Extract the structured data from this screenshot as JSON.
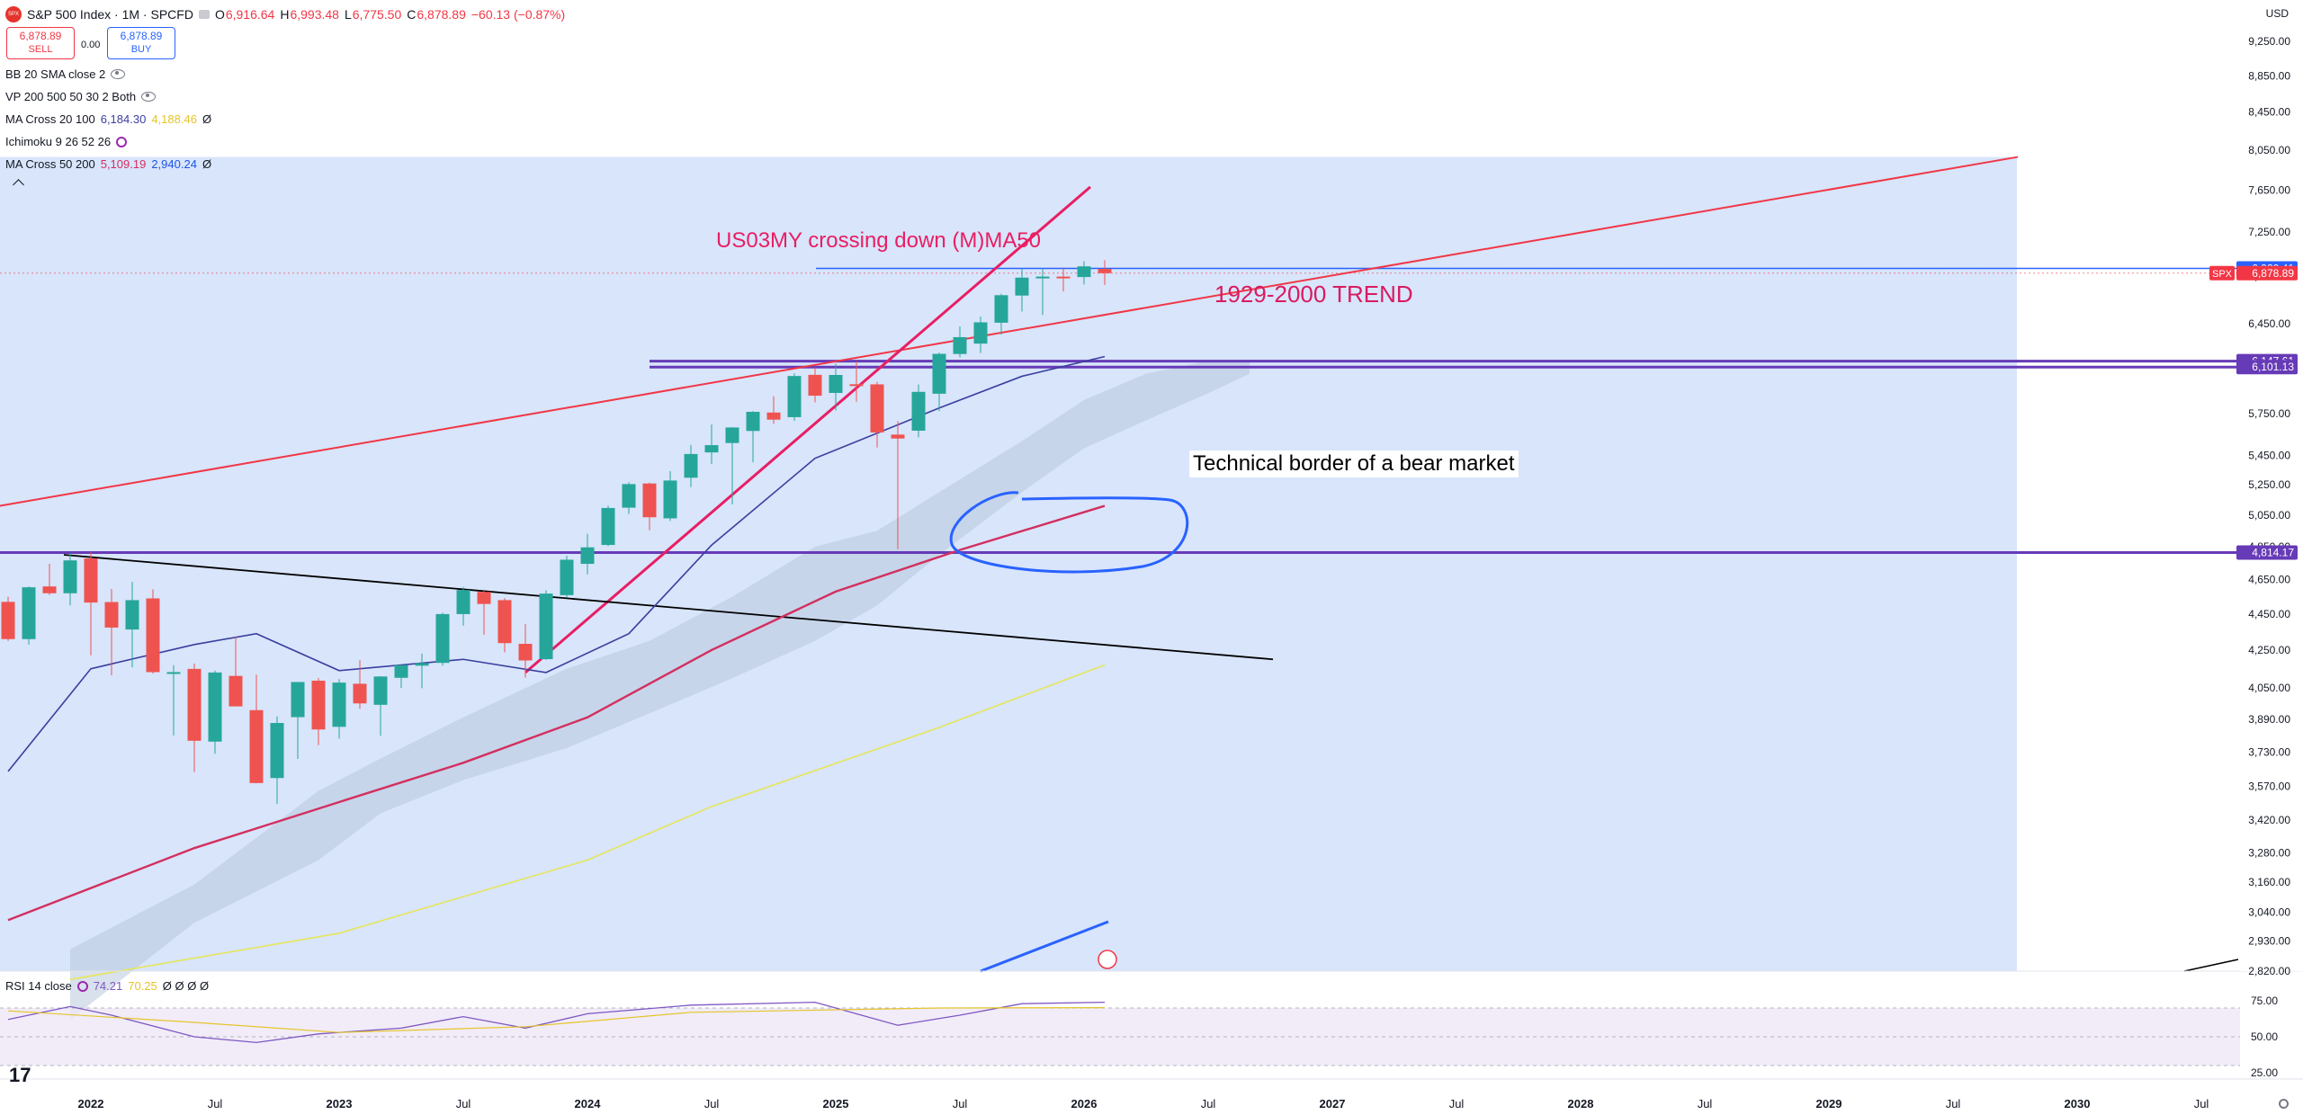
{
  "header": {
    "symbol_icon": "SPX",
    "title": "S&P 500 Index · 1M · SPCFD",
    "open_label": "O",
    "open": "6,916.64",
    "high_label": "H",
    "high": "6,993.48",
    "low_label": "L",
    "low": "6,775.50",
    "close_label": "C",
    "close": "6,878.89",
    "change": "−60.13 (−0.87%)",
    "currency": "USD"
  },
  "trade": {
    "sell_price": "6,878.89",
    "sell_label": "SELL",
    "spread": "0.00",
    "buy_price": "6,878.89",
    "buy_label": "BUY"
  },
  "indicators": [
    {
      "name": "BB 20 SMA close 2",
      "values": []
    },
    {
      "name": "VP 200 500 50 30 2 Both",
      "values": []
    },
    {
      "name": "MA Cross 20 100",
      "values": [
        "6,184.30",
        "4,188.46",
        "Ø"
      ]
    },
    {
      "name": "Ichimoku 9 26 52 26",
      "values": []
    },
    {
      "name": "MA Cross 50 200",
      "values": [
        "5,109.19",
        "2,940.24",
        "Ø"
      ]
    }
  ],
  "rsi": {
    "name": "RSI 14 close",
    "value1": "74.21",
    "value2": "70.25",
    "nulls": "Ø Ø Ø Ø"
  },
  "annotations": {
    "us03my": "US03MY crossing down (M)MA50",
    "trend": "1929-2000 TREND",
    "bear": "Technical border of a bear market"
  },
  "price_tags": [
    {
      "label": "6,920.41",
      "value": 6920.41,
      "color": "#2962ff"
    },
    {
      "label": "6,878.89",
      "value": 6878.89,
      "color": "#f23645",
      "prefix": "SPX"
    },
    {
      "label": "6,147.61",
      "value": 6147.61,
      "color": "#673ab7"
    },
    {
      "label": "6,101.13",
      "value": 6101.13,
      "color": "#673ab7"
    },
    {
      "label": "4,814.17",
      "value": 4814.17,
      "color": "#673ab7"
    }
  ],
  "colors": {
    "bull": "#26a69a",
    "bear": "#ef5350",
    "hline": "#673ab7",
    "trend": "#f23645",
    "ma20": "#3a3f9e",
    "ma100": "#d32f5f",
    "ma200": "#e6e65a"
  },
  "chart_data": {
    "type": "candlestick",
    "title": "S&P 500 Index · 1M · SPCFD",
    "y_axis": {
      "ticks": [
        2820,
        2930,
        3040,
        3160,
        3280,
        3420,
        3570,
        3730,
        3890,
        4050,
        4250,
        4450,
        4650,
        4850,
        5050,
        5250,
        5450,
        5750,
        6100,
        6450,
        6850,
        7250,
        7650,
        8050,
        8450,
        8850,
        9250
      ],
      "tick_labels": [
        "2,820.00",
        "2,930.00",
        "3,040.00",
        "3,160.00",
        "3,280.00",
        "3,420.00",
        "3,570.00",
        "3,730.00",
        "3,890.00",
        "4,050.00",
        "4,250.00",
        "4,450.00",
        "4,650.00",
        "4,850.00",
        "5,050.00",
        "5,250.00",
        "5,450.00",
        "5,750.00",
        "6,100.00",
        "6,450.00",
        "6,850.00",
        "7,250.00",
        "7,650.00",
        "8,050.00",
        "8,450.00",
        "8,850.00",
        "9,250.00"
      ],
      "scale": "log"
    },
    "x_axis": {
      "tick_labels": [
        "2022",
        "Jul",
        "2023",
        "Jul",
        "2024",
        "Jul",
        "2025",
        "Jul",
        "2026",
        "Jul",
        "2027",
        "Jul",
        "2028",
        "Jul",
        "2029",
        "Jul",
        "2030",
        "Jul"
      ],
      "tick_dates": [
        "2022-01",
        "2022-07",
        "2023-01",
        "2023-07",
        "2024-01",
        "2024-07",
        "2025-01",
        "2025-07",
        "2026-01",
        "2026-07",
        "2027-01",
        "2027-07",
        "2028-01",
        "2028-07",
        "2029-01",
        "2029-07",
        "2030-01",
        "2030-07"
      ]
    },
    "candles": [
      {
        "date": "2021-09",
        "o": 4520,
        "h": 4550,
        "l": 4300,
        "c": 4310
      },
      {
        "date": "2021-10",
        "o": 4310,
        "h": 4610,
        "l": 4280,
        "c": 4605
      },
      {
        "date": "2021-11",
        "o": 4610,
        "h": 4745,
        "l": 4560,
        "c": 4570
      },
      {
        "date": "2021-12",
        "o": 4570,
        "h": 4810,
        "l": 4500,
        "c": 4766
      },
      {
        "date": "2022-01",
        "o": 4778,
        "h": 4818,
        "l": 4222,
        "c": 4516
      },
      {
        "date": "2022-02",
        "o": 4519,
        "h": 4595,
        "l": 4115,
        "c": 4374
      },
      {
        "date": "2022-03",
        "o": 4363,
        "h": 4637,
        "l": 4157,
        "c": 4530
      },
      {
        "date": "2022-04",
        "o": 4540,
        "h": 4593,
        "l": 4124,
        "c": 4132
      },
      {
        "date": "2022-05",
        "o": 4130,
        "h": 4169,
        "l": 3811,
        "c": 4132
      },
      {
        "date": "2022-06",
        "o": 4149,
        "h": 4177,
        "l": 3637,
        "c": 3785
      },
      {
        "date": "2022-07",
        "o": 3781,
        "h": 4140,
        "l": 3723,
        "c": 4130
      },
      {
        "date": "2022-08",
        "o": 4112,
        "h": 4325,
        "l": 3955,
        "c": 3955
      },
      {
        "date": "2022-09",
        "o": 3936,
        "h": 4119,
        "l": 3585,
        "c": 3586
      },
      {
        "date": "2022-10",
        "o": 3609,
        "h": 3905,
        "l": 3492,
        "c": 3872
      },
      {
        "date": "2022-11",
        "o": 3901,
        "h": 4080,
        "l": 3698,
        "c": 4080
      },
      {
        "date": "2022-12",
        "o": 4087,
        "h": 4101,
        "l": 3764,
        "c": 3840
      },
      {
        "date": "2023-01",
        "o": 3853,
        "h": 4095,
        "l": 3795,
        "c": 4077
      },
      {
        "date": "2023-02",
        "o": 4071,
        "h": 4195,
        "l": 3943,
        "c": 3970
      },
      {
        "date": "2023-03",
        "o": 3963,
        "h": 4110,
        "l": 3809,
        "c": 4109
      },
      {
        "date": "2023-04",
        "o": 4102,
        "h": 4170,
        "l": 4049,
        "c": 4169
      },
      {
        "date": "2023-05",
        "o": 4166,
        "h": 4231,
        "l": 4048,
        "c": 4180
      },
      {
        "date": "2023-06",
        "o": 4181,
        "h": 4458,
        "l": 4166,
        "c": 4450
      },
      {
        "date": "2023-07",
        "o": 4450,
        "h": 4607,
        "l": 4385,
        "c": 4589
      },
      {
        "date": "2023-08",
        "o": 4578,
        "h": 4584,
        "l": 4335,
        "c": 4508
      },
      {
        "date": "2023-09",
        "o": 4530,
        "h": 4541,
        "l": 4238,
        "c": 4288
      },
      {
        "date": "2023-10",
        "o": 4284,
        "h": 4393,
        "l": 4103,
        "c": 4194
      },
      {
        "date": "2023-11",
        "o": 4201,
        "h": 4587,
        "l": 4197,
        "c": 4568
      },
      {
        "date": "2023-12",
        "o": 4559,
        "h": 4794,
        "l": 4546,
        "c": 4770
      },
      {
        "date": "2024-01",
        "o": 4745,
        "h": 4931,
        "l": 4682,
        "c": 4846
      },
      {
        "date": "2024-02",
        "o": 4861,
        "h": 5111,
        "l": 4853,
        "c": 5096
      },
      {
        "date": "2024-03",
        "o": 5098,
        "h": 5265,
        "l": 5056,
        "c": 5254
      },
      {
        "date": "2024-04",
        "o": 5258,
        "h": 5264,
        "l": 4953,
        "c": 5036
      },
      {
        "date": "2024-05",
        "o": 5029,
        "h": 5342,
        "l": 5012,
        "c": 5278
      },
      {
        "date": "2024-06",
        "o": 5297,
        "h": 5523,
        "l": 5234,
        "c": 5460
      },
      {
        "date": "2024-07",
        "o": 5471,
        "h": 5669,
        "l": 5390,
        "c": 5522
      },
      {
        "date": "2024-08",
        "o": 5537,
        "h": 5651,
        "l": 5119,
        "c": 5648
      },
      {
        "date": "2024-09",
        "o": 5623,
        "h": 5767,
        "l": 5402,
        "c": 5762
      },
      {
        "date": "2024-10",
        "o": 5757,
        "h": 5878,
        "l": 5674,
        "c": 5705
      },
      {
        "date": "2024-11",
        "o": 5723,
        "h": 6053,
        "l": 5696,
        "c": 6032
      },
      {
        "date": "2024-12",
        "o": 6041,
        "h": 6099,
        "l": 5832,
        "c": 5882
      },
      {
        "date": "2025-01",
        "o": 5903,
        "h": 6128,
        "l": 5773,
        "c": 6040
      },
      {
        "date": "2025-02",
        "o": 5969,
        "h": 6147,
        "l": 5837,
        "c": 5955
      },
      {
        "date": "2025-03",
        "o": 5968,
        "h": 5987,
        "l": 5505,
        "c": 5612
      },
      {
        "date": "2025-04",
        "o": 5597,
        "h": 5695,
        "l": 4835,
        "c": 5569
      },
      {
        "date": "2025-05",
        "o": 5625,
        "h": 5968,
        "l": 5578,
        "c": 5911
      },
      {
        "date": "2025-06",
        "o": 5897,
        "h": 6215,
        "l": 5767,
        "c": 6205
      },
      {
        "date": "2025-07",
        "o": 6204,
        "h": 6427,
        "l": 6178,
        "c": 6339
      },
      {
        "date": "2025-08",
        "o": 6287,
        "h": 6508,
        "l": 6212,
        "c": 6460
      },
      {
        "date": "2025-09",
        "o": 6457,
        "h": 6700,
        "l": 6360,
        "c": 6688
      },
      {
        "date": "2025-10",
        "o": 6685,
        "h": 6920,
        "l": 6550,
        "c": 6840
      },
      {
        "date": "2025-11",
        "o": 6840,
        "h": 6920,
        "l": 6521,
        "c": 6849
      },
      {
        "date": "2025-12",
        "o": 6849,
        "h": 6930,
        "l": 6720,
        "c": 6845
      },
      {
        "date": "2026-01",
        "o": 6845,
        "h": 6985,
        "l": 6780,
        "c": 6939
      },
      {
        "date": "2026-02",
        "o": 6916.64,
        "h": 6993.48,
        "l": 6775.5,
        "c": 6878.89
      }
    ],
    "horizontal_lines": [
      6920.41,
      6147.61,
      6101.13,
      4814.17
    ],
    "rsi": {
      "y_ticks": [
        25,
        50,
        75
      ],
      "tick_labels": [
        "25.00",
        "50.00",
        "75.00"
      ]
    }
  }
}
